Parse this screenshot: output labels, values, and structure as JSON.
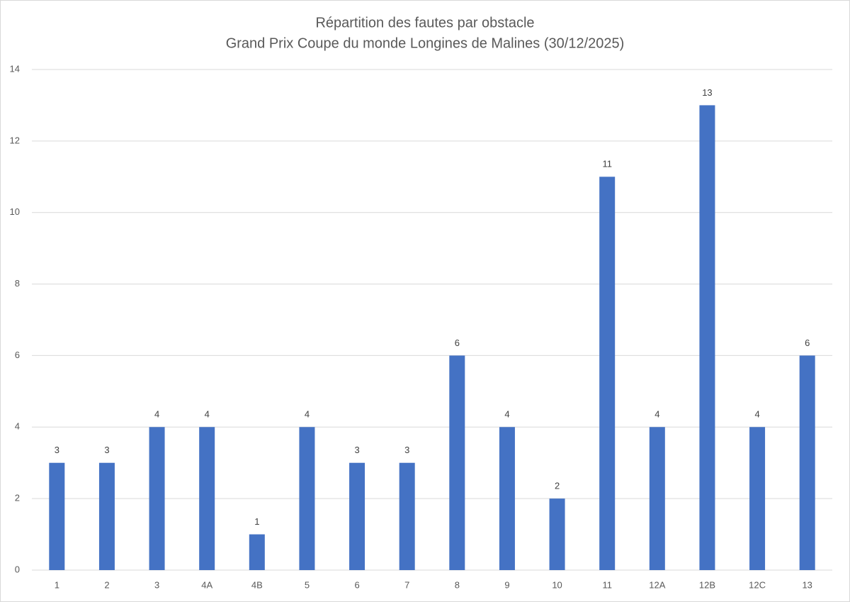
{
  "chart_data": {
    "type": "bar",
    "title": "Répartition des fautes par obstacle",
    "subtitle": "Grand Prix Coupe du monde Longines de Malines (30/12/2025)",
    "categories": [
      "1",
      "2",
      "3",
      "4A",
      "4B",
      "5",
      "6",
      "7",
      "8",
      "9",
      "10",
      "11",
      "12A",
      "12B",
      "12C",
      "13"
    ],
    "values": [
      3,
      3,
      4,
      4,
      1,
      4,
      3,
      3,
      6,
      4,
      2,
      11,
      4,
      13,
      4,
      6
    ],
    "color": "#4472c4",
    "ylim": [
      0,
      14
    ],
    "yticks": [
      0,
      2,
      4,
      6,
      8,
      10,
      12,
      14
    ],
    "grid": true,
    "data_labels": true
  }
}
